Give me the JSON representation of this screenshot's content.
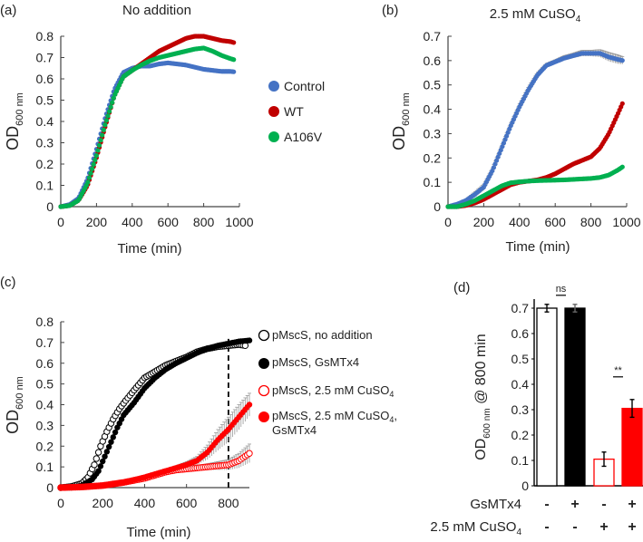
{
  "colors": {
    "control": "#4472C4",
    "wt": "#C00000",
    "a106v": "#00B050",
    "black": "#000000",
    "red": "#FF0000",
    "errorbar": "#9a9a9a",
    "axis": "#444444"
  },
  "chart_data": [
    {
      "panel": "(a)",
      "type": "scatter",
      "title": "No addition",
      "xlabel": "Time (min)",
      "ylabel": "OD600 nm",
      "ylabel_main": "OD",
      "ylabel_sub": "600 nm",
      "xlim": [
        0,
        1000
      ],
      "ylim": [
        0,
        0.8
      ],
      "xticks": [
        0,
        200,
        400,
        600,
        800,
        1000
      ],
      "yticks": [
        0,
        0.1,
        0.2,
        0.3,
        0.4,
        0.5,
        0.6,
        0.7,
        0.8
      ],
      "ytick_labels": [
        "0",
        "0.1",
        "0.2",
        "0.3",
        "0.4",
        "0.5",
        "0.6",
        "0.7",
        "0.8"
      ],
      "legend": [
        "Control",
        "WT",
        "A106V"
      ],
      "legend_position": "right",
      "grid": false,
      "series": [
        {
          "name": "Control",
          "color_key": "control",
          "x": [
            0,
            50,
            100,
            150,
            200,
            250,
            300,
            350,
            400,
            450,
            500,
            550,
            600,
            650,
            700,
            750,
            800,
            850,
            900,
            950,
            970
          ],
          "y": [
            0.0,
            0.01,
            0.04,
            0.13,
            0.27,
            0.42,
            0.55,
            0.63,
            0.65,
            0.66,
            0.66,
            0.67,
            0.675,
            0.67,
            0.665,
            0.655,
            0.645,
            0.64,
            0.635,
            0.635,
            0.633
          ]
        },
        {
          "name": "WT",
          "color_key": "wt",
          "x": [
            0,
            50,
            100,
            150,
            200,
            250,
            300,
            350,
            400,
            450,
            500,
            550,
            600,
            650,
            700,
            750,
            800,
            850,
            900,
            950,
            970
          ],
          "y": [
            0.0,
            0.005,
            0.03,
            0.1,
            0.23,
            0.38,
            0.52,
            0.61,
            0.64,
            0.67,
            0.7,
            0.73,
            0.75,
            0.77,
            0.79,
            0.8,
            0.8,
            0.79,
            0.78,
            0.775,
            0.77
          ]
        },
        {
          "name": "A106V",
          "color_key": "a106v",
          "x": [
            0,
            50,
            100,
            150,
            200,
            250,
            300,
            350,
            400,
            450,
            500,
            550,
            600,
            650,
            700,
            750,
            800,
            850,
            900,
            950,
            970
          ],
          "y": [
            0.0,
            0.005,
            0.03,
            0.11,
            0.24,
            0.39,
            0.52,
            0.61,
            0.64,
            0.665,
            0.685,
            0.7,
            0.71,
            0.72,
            0.73,
            0.74,
            0.745,
            0.73,
            0.71,
            0.695,
            0.69
          ]
        }
      ]
    },
    {
      "panel": "(b)",
      "type": "scatter",
      "title": "2.5 mM CuSO",
      "title_sub": "4",
      "xlabel": "Time (min)",
      "ylabel": "OD600 nm",
      "ylabel_main": "OD",
      "ylabel_sub": "600 nm",
      "xlim": [
        0,
        1000
      ],
      "ylim": [
        0,
        0.7
      ],
      "xticks": [
        0,
        200,
        400,
        600,
        800,
        1000
      ],
      "yticks": [
        0,
        0.1,
        0.2,
        0.3,
        0.4,
        0.5,
        0.6,
        0.7
      ],
      "ytick_labels": [
        "0",
        "0.1",
        "0.2",
        "0.3",
        "0.4",
        "0.5",
        "0.6",
        "0.7"
      ],
      "grid": false,
      "series": [
        {
          "name": "Control",
          "color_key": "control",
          "x": [
            0,
            50,
            100,
            150,
            200,
            250,
            300,
            350,
            400,
            450,
            500,
            550,
            600,
            650,
            700,
            750,
            800,
            850,
            900,
            950,
            980
          ],
          "y": [
            0.0,
            0.01,
            0.025,
            0.05,
            0.08,
            0.15,
            0.24,
            0.33,
            0.41,
            0.48,
            0.54,
            0.58,
            0.595,
            0.61,
            0.62,
            0.63,
            0.63,
            0.63,
            0.615,
            0.605,
            0.6
          ],
          "err": [
            0,
            0.003,
            0.005,
            0.01,
            0.012,
            0.012,
            0.012,
            0.012,
            0.012,
            0.012,
            0.01,
            0.008,
            0.008,
            0.01,
            0.01,
            0.012,
            0.012,
            0.015,
            0.018,
            0.018,
            0.015
          ]
        },
        {
          "name": "WT",
          "color_key": "wt",
          "x": [
            0,
            50,
            100,
            150,
            200,
            250,
            300,
            350,
            400,
            450,
            500,
            550,
            600,
            650,
            700,
            750,
            800,
            850,
            900,
            950,
            980
          ],
          "y": [
            0.0,
            0.0,
            0.005,
            0.015,
            0.03,
            0.05,
            0.07,
            0.09,
            0.1,
            0.105,
            0.11,
            0.12,
            0.135,
            0.155,
            0.175,
            0.19,
            0.205,
            0.24,
            0.3,
            0.38,
            0.43
          ]
        },
        {
          "name": "A106V",
          "color_key": "a106v",
          "x": [
            0,
            50,
            100,
            150,
            200,
            250,
            300,
            350,
            400,
            450,
            500,
            550,
            600,
            650,
            700,
            750,
            800,
            850,
            900,
            950,
            980
          ],
          "y": [
            0.0,
            0.0,
            0.01,
            0.025,
            0.045,
            0.065,
            0.085,
            0.098,
            0.102,
            0.105,
            0.107,
            0.108,
            0.109,
            0.11,
            0.112,
            0.114,
            0.116,
            0.12,
            0.13,
            0.15,
            0.165
          ]
        }
      ]
    },
    {
      "panel": "(c)",
      "type": "scatter",
      "title": "",
      "xlabel": "Time (min)",
      "ylabel": "OD600 nm",
      "ylabel_main": "OD",
      "ylabel_sub": "600 nm",
      "xlim": [
        0,
        900
      ],
      "ylim": [
        0,
        0.8
      ],
      "xticks": [
        0,
        200,
        400,
        600,
        800
      ],
      "yticks": [
        0,
        0.1,
        0.2,
        0.3,
        0.4,
        0.5,
        0.6,
        0.7,
        0.8
      ],
      "ytick_labels": [
        "0",
        "0.1",
        "0.2",
        "0.3",
        "0.4",
        "0.5",
        "0.6",
        "0.7",
        "0.8"
      ],
      "vline": {
        "x": 800,
        "style": "dashed"
      },
      "legend": [
        "pMscS, no addition",
        "pMscS, GsMTx4",
        "pMscS, 2.5 mM CuSO4",
        "pMscS, 2.5 mM CuSO4, GsMTx4"
      ],
      "legend_position": "right",
      "grid": false,
      "series": [
        {
          "name": "pMscS, no addition",
          "marker": "open",
          "color_key": "black",
          "x": [
            0,
            50,
            100,
            130,
            160,
            190,
            220,
            250,
            280,
            310,
            350,
            400,
            450,
            500,
            550,
            600,
            650,
            700,
            750,
            800,
            850,
            880
          ],
          "y": [
            0.0,
            0.005,
            0.02,
            0.05,
            0.11,
            0.2,
            0.27,
            0.33,
            0.38,
            0.42,
            0.47,
            0.53,
            0.56,
            0.59,
            0.61,
            0.63,
            0.655,
            0.67,
            0.68,
            0.685,
            0.69,
            0.685
          ]
        },
        {
          "name": "pMscS, GsMTx4",
          "marker": "filled",
          "color_key": "black",
          "x": [
            0,
            50,
            100,
            150,
            180,
            210,
            240,
            270,
            300,
            350,
            400,
            450,
            500,
            550,
            600,
            650,
            700,
            750,
            800,
            850,
            900
          ],
          "y": [
            0.0,
            0.0,
            0.01,
            0.04,
            0.08,
            0.15,
            0.22,
            0.29,
            0.35,
            0.41,
            0.48,
            0.53,
            0.57,
            0.6,
            0.625,
            0.65,
            0.67,
            0.685,
            0.695,
            0.705,
            0.71
          ]
        },
        {
          "name": "pMscS, 2.5 mM CuSO4",
          "marker": "open",
          "color_key": "red",
          "x": [
            0,
            100,
            200,
            300,
            400,
            450,
            500,
            550,
            600,
            650,
            700,
            750,
            800,
            850,
            900
          ],
          "y": [
            0.0,
            0.003,
            0.01,
            0.025,
            0.045,
            0.06,
            0.075,
            0.085,
            0.09,
            0.095,
            0.1,
            0.105,
            0.11,
            0.13,
            0.165
          ],
          "err": [
            0,
            0,
            0,
            0,
            0,
            0,
            0.005,
            0.005,
            0.008,
            0.01,
            0.015,
            0.02,
            0.025,
            0.035,
            0.045
          ]
        },
        {
          "name": "pMscS, 2.5 mM CuSO4, GsMTx4",
          "marker": "filled",
          "color_key": "red",
          "x": [
            0,
            100,
            200,
            300,
            400,
            450,
            500,
            550,
            600,
            650,
            700,
            750,
            800,
            850,
            900
          ],
          "y": [
            0.0,
            0.003,
            0.01,
            0.025,
            0.05,
            0.065,
            0.08,
            0.095,
            0.11,
            0.13,
            0.17,
            0.23,
            0.28,
            0.34,
            0.4
          ],
          "err": [
            0,
            0,
            0,
            0,
            0,
            0,
            0,
            0.01,
            0.015,
            0.02,
            0.035,
            0.05,
            0.06,
            0.06,
            0.055
          ]
        }
      ]
    },
    {
      "panel": "(d)",
      "type": "bar",
      "title": "",
      "ylabel": "OD600 nm @ 800 min",
      "ylabel_main": "OD",
      "ylabel_sub": "600 nm",
      "ylabel_tail": " @ 800 min",
      "ylim": [
        0,
        0.7
      ],
      "yticks": [
        0,
        0.1,
        0.2,
        0.3,
        0.4,
        0.5,
        0.6,
        0.7
      ],
      "ytick_labels": [
        "0",
        "0.1",
        "0.2",
        "0.3",
        "0.4",
        "0.5",
        "0.6",
        "0.7"
      ],
      "categories": [
        "-/-",
        "+/-",
        "-/+",
        "+/+"
      ],
      "values": [
        0.7,
        0.7,
        0.105,
        0.305
      ],
      "errors": [
        0.015,
        0.015,
        0.028,
        0.035
      ],
      "bar_styles": [
        {
          "fill": "#ffffff",
          "stroke": "#000000"
        },
        {
          "fill": "#000000",
          "stroke": "#000000"
        },
        {
          "fill": "#ffffff",
          "stroke": "#FF0000"
        },
        {
          "fill": "#FF0000",
          "stroke": "#FF0000"
        }
      ],
      "condition_rows": [
        {
          "label": "GsMTx4",
          "values": [
            "-",
            "+",
            "-",
            "+"
          ]
        },
        {
          "label": "2.5 mM CuSO",
          "label_sub": "4",
          "values": [
            "-",
            "-",
            "+",
            "+"
          ]
        }
      ],
      "annotations": [
        {
          "text": "ns",
          "between": [
            0,
            1
          ]
        },
        {
          "text": "**",
          "between": [
            2,
            3
          ]
        }
      ]
    }
  ],
  "panel_labels": [
    "(a)",
    "(b)",
    "(c)",
    "(d)"
  ]
}
